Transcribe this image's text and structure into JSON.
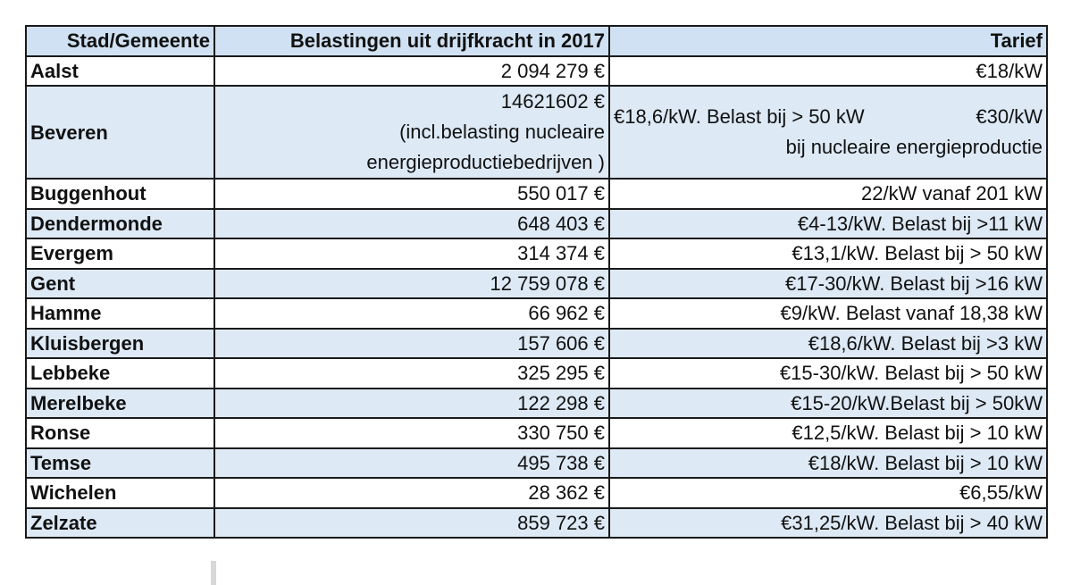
{
  "table": {
    "headers": [
      "Stad/Gemeente",
      "Belastingen uit drijfkracht in 2017",
      "Tarief"
    ],
    "rows": [
      {
        "city": "Aalst",
        "amount": "2 094 279 €",
        "tarief": "€18/kW"
      },
      {
        "city": "Beveren",
        "amount_lines": [
          "14621602 €",
          "(incl.belasting nucleaire",
          "energieproductiebedrijven )"
        ],
        "tarief_parts": [
          "€18,6/kW. Belast bij > 50 kW",
          "€30/kW",
          "bij nucleaire energieproductie"
        ]
      },
      {
        "city": "Buggenhout",
        "amount": "550 017 €",
        "tarief": "22/kW vanaf 201 kW"
      },
      {
        "city": "Dendermonde",
        "amount": "648 403 €",
        "tarief": "€4-13/kW. Belast bij >11 kW"
      },
      {
        "city": "Evergem",
        "amount": "314 374 €",
        "tarief": "€13,1/kW. Belast bij > 50 kW"
      },
      {
        "city": "Gent",
        "amount": "12 759 078 €",
        "tarief": "€17-30/kW. Belast bij >16 kW"
      },
      {
        "city": "Hamme",
        "amount": "66 962 €",
        "tarief": "€9/kW. Belast vanaf 18,38 kW"
      },
      {
        "city": "Kluisbergen",
        "amount": "157 606 €",
        "tarief": "€18,6/kW. Belast bij >3 kW"
      },
      {
        "city": "Lebbeke",
        "amount": "325 295 €",
        "tarief": "€15-30/kW. Belast bij > 50 kW"
      },
      {
        "city": "Merelbeke",
        "amount": "122 298 €",
        "tarief": "€15-20/kW.Belast bij > 50kW"
      },
      {
        "city": "Ronse",
        "amount": "330 750 €",
        "tarief": "€12,5/kW. Belast bij > 10 kW"
      },
      {
        "city": "Temse",
        "amount": "495 738 €",
        "tarief": "€18/kW. Belast bij > 10 kW"
      },
      {
        "city": "Wichelen",
        "amount": "28 362 €",
        "tarief": "€6,55/kW"
      },
      {
        "city": "Zelzate",
        "amount": "859 723 €",
        "tarief": "€31,25/kW. Belast bij > 40 kW"
      }
    ]
  },
  "colors": {
    "header_bg": "#cfe1f2",
    "alt_row_bg": "#dde9f5",
    "border": "#1a1a1a"
  }
}
